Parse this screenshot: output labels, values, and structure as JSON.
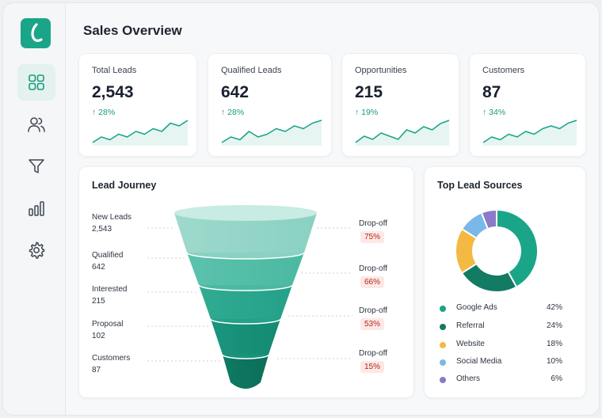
{
  "page_title": "Sales Overview",
  "sidebar": {
    "items": [
      {
        "name": "dashboard",
        "icon": "grid-icon"
      },
      {
        "name": "contacts",
        "icon": "users-icon"
      },
      {
        "name": "funnel",
        "icon": "funnel-icon"
      },
      {
        "name": "reports",
        "icon": "bar-chart-icon"
      },
      {
        "name": "settings",
        "icon": "gear-icon"
      }
    ]
  },
  "kpis": [
    {
      "label": "Total Leads",
      "value": "2,543",
      "change": "↑ 28%",
      "trend": [
        2,
        4,
        3,
        5,
        4,
        6,
        5,
        7,
        6,
        9,
        8,
        10
      ]
    },
    {
      "label": "Qualified Leads",
      "value": "642",
      "change": "↑ 28%",
      "trend": [
        2,
        4,
        3,
        6,
        4,
        5,
        7,
        6,
        8,
        7,
        9,
        10
      ]
    },
    {
      "label": "Opportunities",
      "value": "215",
      "change": "↑ 19%",
      "trend": [
        3,
        5,
        4,
        6,
        5,
        4,
        7,
        6,
        8,
        7,
        9,
        10
      ]
    },
    {
      "label": "Customers",
      "value": "87",
      "change": "↑ 34%",
      "trend": [
        2,
        4,
        3,
        5,
        4,
        6,
        5,
        7,
        8,
        7,
        9,
        10
      ]
    }
  ],
  "lead_journey": {
    "title": "Lead Journey",
    "stages": [
      {
        "label": "New Leads",
        "value": "2,543"
      },
      {
        "label": "Qualified",
        "value": "642"
      },
      {
        "label": "Interested",
        "value": "215"
      },
      {
        "label": "Proposal",
        "value": "102"
      },
      {
        "label": "Customers",
        "value": "87"
      }
    ],
    "dropoffs": [
      {
        "label": "Drop-off",
        "value": "75%"
      },
      {
        "label": "Drop-off",
        "value": "66%"
      },
      {
        "label": "Drop-off",
        "value": "53%"
      },
      {
        "label": "Drop-off",
        "value": "15%"
      }
    ]
  },
  "lead_sources": {
    "title": "Top Lead Sources",
    "items": [
      {
        "name": "Google Ads",
        "pct": "42%",
        "value": 42,
        "color": "#1aa589"
      },
      {
        "name": "Referral",
        "pct": "24%",
        "value": 24,
        "color": "#137a63"
      },
      {
        "name": "Website",
        "pct": "18%",
        "value": 18,
        "color": "#f4b942"
      },
      {
        "name": "Social Media",
        "pct": "10%",
        "value": 10,
        "color": "#7ab8e8"
      },
      {
        "name": "Others",
        "pct": "6%",
        "value": 6,
        "color": "#8b79c9"
      }
    ]
  },
  "colors": {
    "accent": "#1aa589",
    "drop_bg": "#fde8e6",
    "drop_text": "#b3281e"
  }
}
